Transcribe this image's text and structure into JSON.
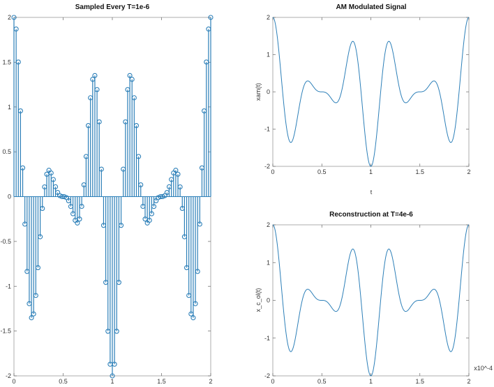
{
  "chart_data": [
    {
      "type": "stem",
      "title": "Sampled Every T=1e-6",
      "xlabel": "",
      "ylabel": "",
      "xlim": [
        0,
        2
      ],
      "ylim": [
        -2,
        2
      ],
      "xticks": [
        "0",
        "0.5",
        "1",
        "1.5",
        "2"
      ],
      "yticks": [
        "-2",
        "-1.5",
        "-1",
        "-0.5",
        "0",
        "0.5",
        "1",
        "1.5",
        "2"
      ],
      "samples": 90,
      "signal": "(1 + cos(2*pi*1e4*t)) * cos(2*pi*2.5e4*t), sampled at T = 1e-6 s; x in units of 1e-4 s",
      "color": "#2c7fb8"
    },
    {
      "type": "line",
      "title": "AM Modulated Signal",
      "xlabel": "t",
      "ylabel": "xam(t)",
      "xlim": [
        0,
        2
      ],
      "ylim": [
        -2,
        2
      ],
      "xticks": [
        "0",
        "0.5",
        "1",
        "1.5",
        "2"
      ],
      "yticks": [
        "-2",
        "-1",
        "0",
        "1",
        "2"
      ],
      "signal": "(1 + cos(2*pi*1e4*t)) * cos(2*pi*2.5e4*t); x in units of 1e-4 s",
      "color": "#2c7fb8"
    },
    {
      "type": "line",
      "title": "Reconstruction at T=4e-6",
      "xlabel": "",
      "ylabel": "x_c_ol(t)",
      "xlim": [
        0,
        2
      ],
      "ylim": [
        -2,
        2
      ],
      "xticks": [
        "0",
        "0.5",
        "1",
        "1.5",
        "2"
      ],
      "yticks": [
        "-2",
        "-1",
        "0",
        "1",
        "2"
      ],
      "x_exponent": "x10^-4",
      "signal": "(1 + cos(2*pi*1e4*t)) * cos(2*pi*2.5e4*t); x in units of 1e-4 s",
      "color": "#2c7fb8"
    }
  ]
}
